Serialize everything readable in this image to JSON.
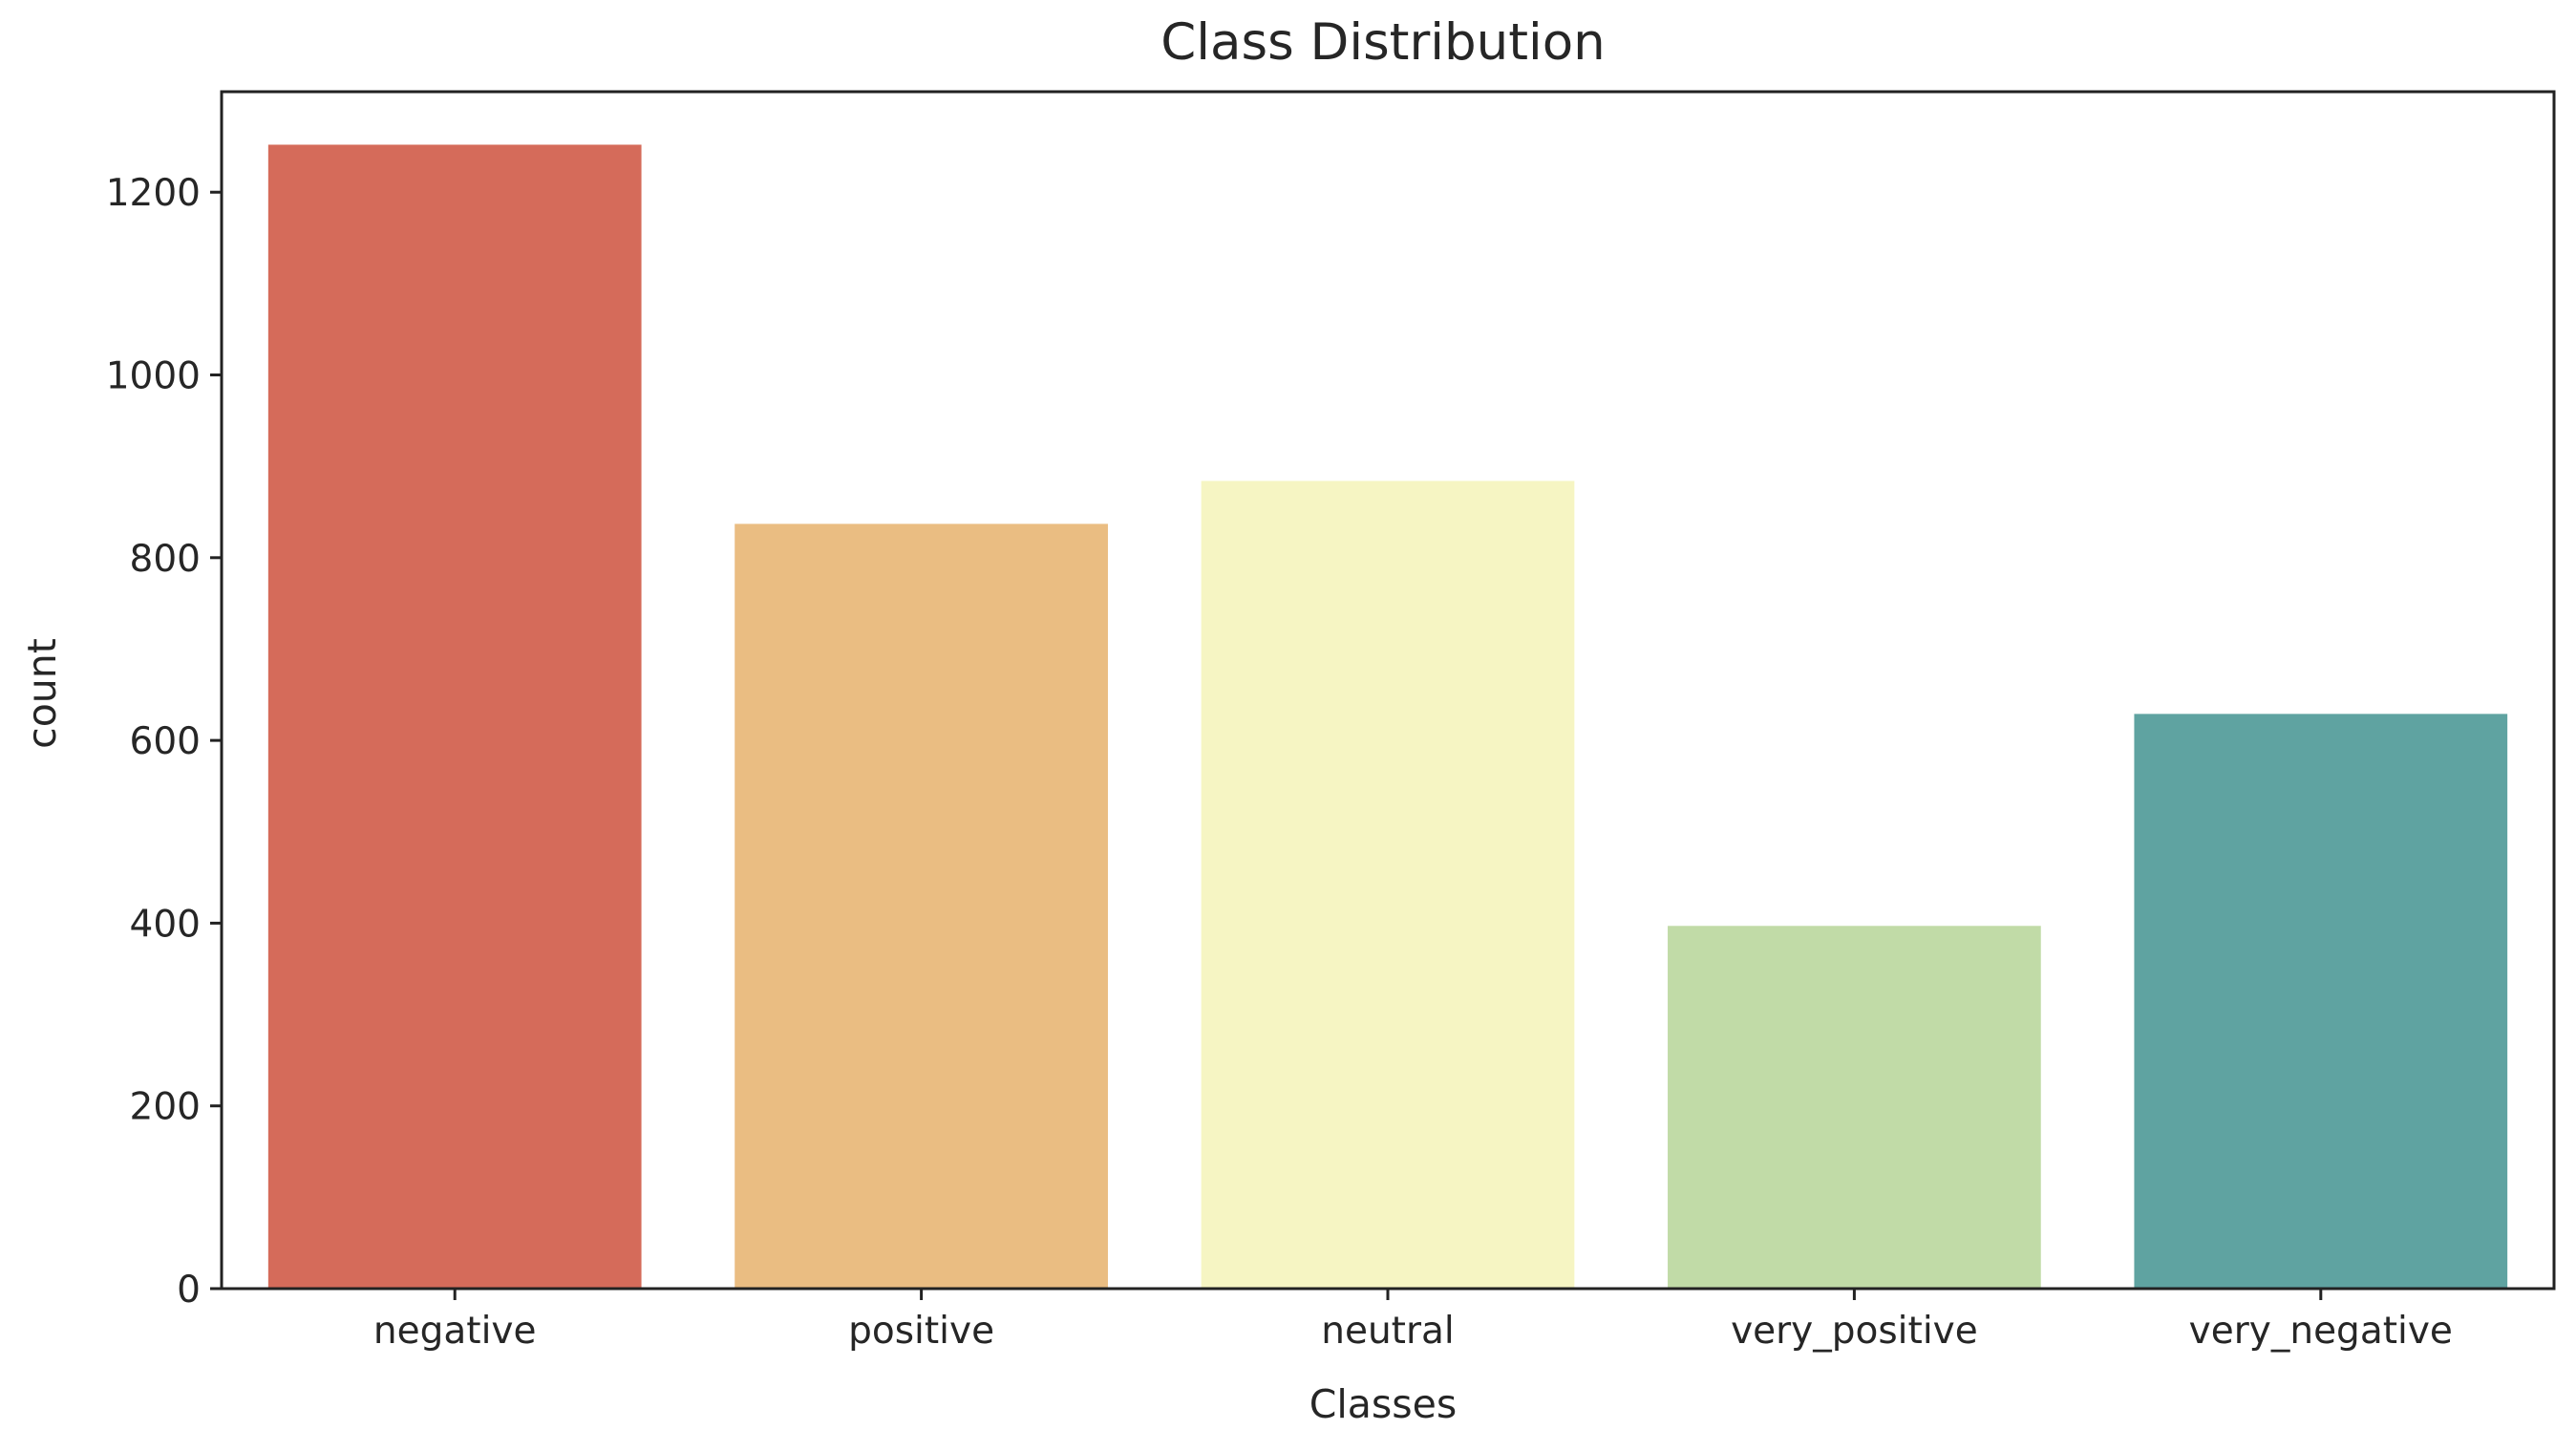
{
  "chart_data": {
    "type": "bar",
    "title": "Class Distribution",
    "xlabel": "Classes",
    "ylabel": "count",
    "categories": [
      "negative",
      "positive",
      "neutral",
      "very_positive",
      "very_negative"
    ],
    "values": [
      1252,
      837,
      884,
      397,
      629
    ],
    "colors": [
      "#d56b5a",
      "#eabd82",
      "#f6f5c3",
      "#c1dba7",
      "#5fa3a1"
    ],
    "yticks": [
      0,
      200,
      400,
      600,
      800,
      1000,
      1200
    ],
    "ylim": [
      0,
      1310
    ],
    "grid": false,
    "legend": "none"
  }
}
